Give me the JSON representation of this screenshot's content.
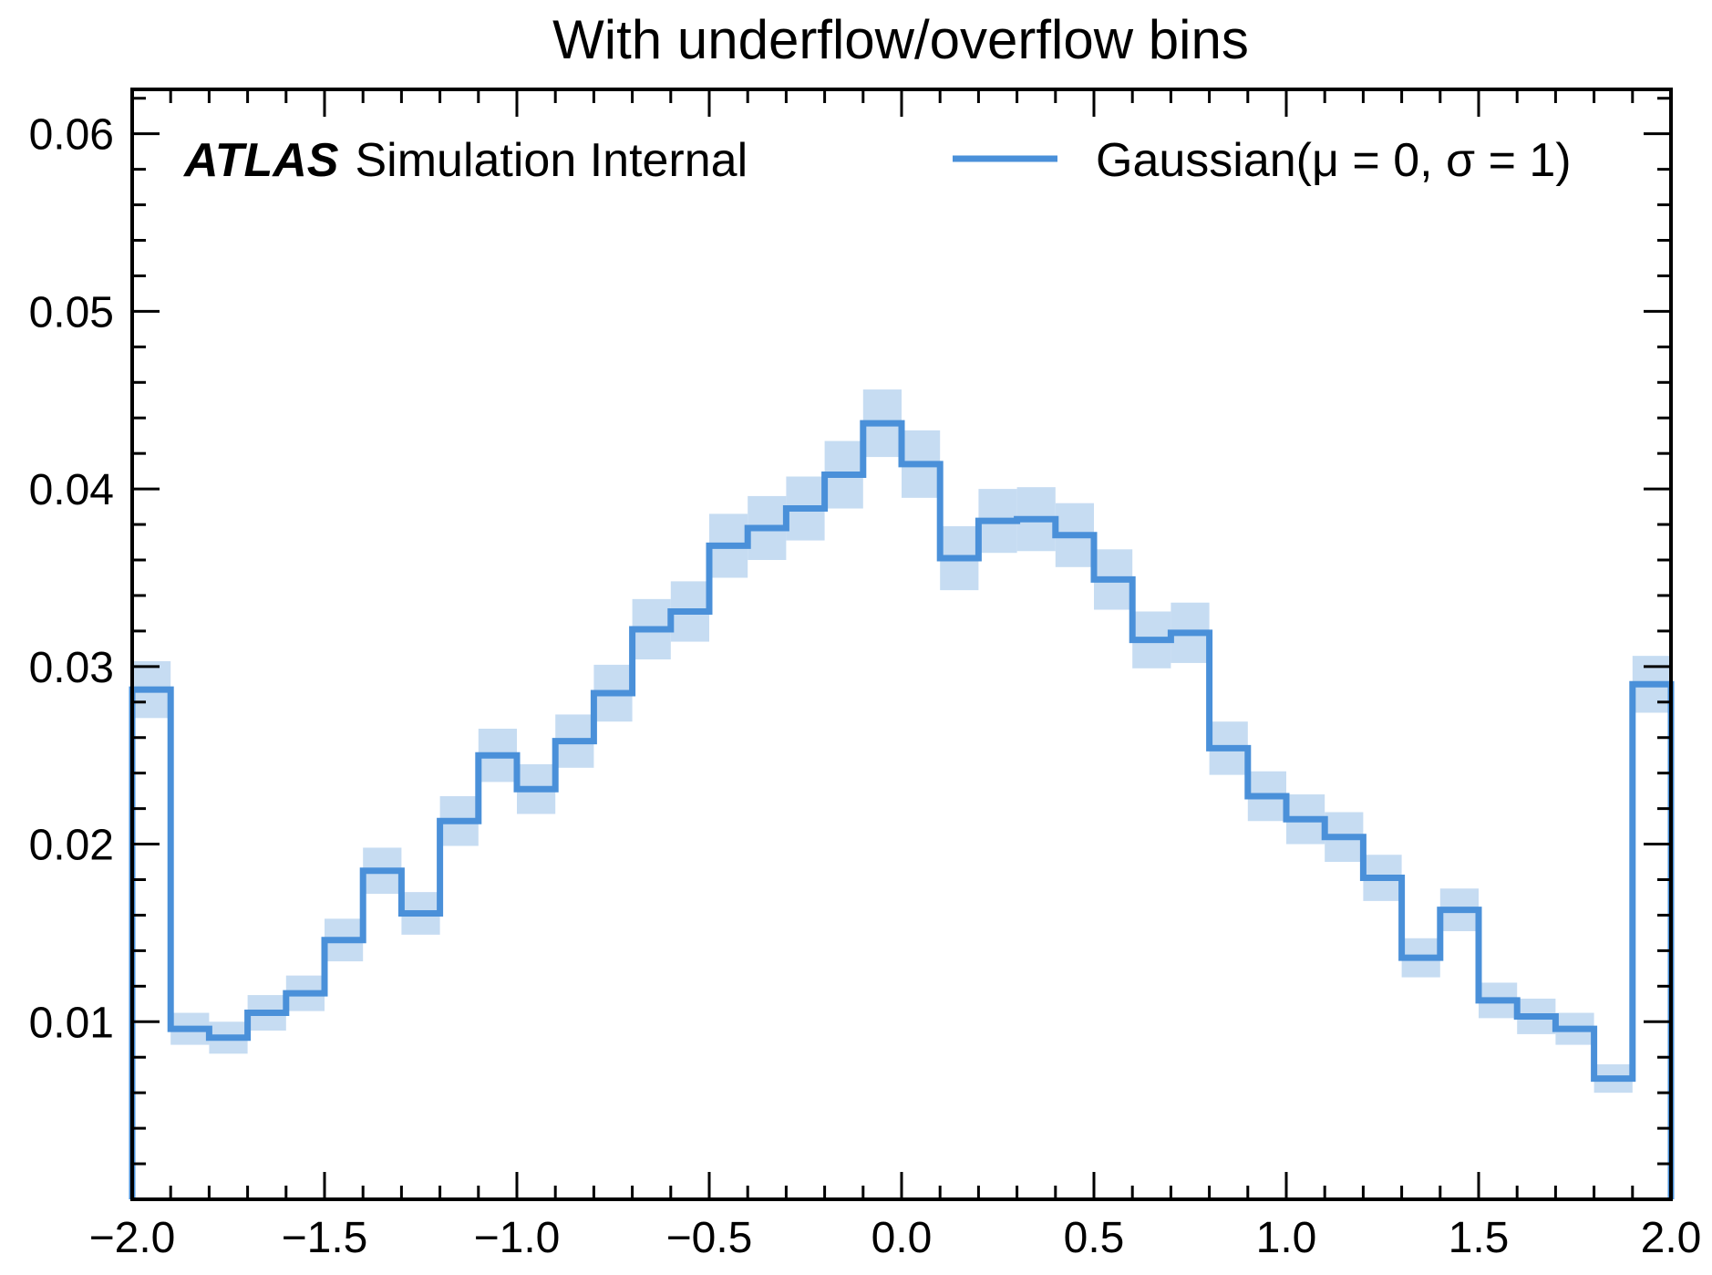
{
  "chart_data": {
    "type": "histogram",
    "title": "With underflow/overflow bins",
    "xlabel": "",
    "ylabel": "",
    "xlim": [
      -2.0,
      2.0
    ],
    "ylim": [
      0.0,
      0.0625
    ],
    "x_ticks": [
      -2.0,
      -1.5,
      -1.0,
      -0.5,
      0.0,
      0.5,
      1.0,
      1.5,
      2.0
    ],
    "x_tick_labels": [
      "−2.0",
      "−1.5",
      "−1.0",
      "−0.5",
      "0.0",
      "0.5",
      "1.0",
      "1.5",
      "2.0"
    ],
    "y_ticks": [
      0.01,
      0.02,
      0.03,
      0.04,
      0.05,
      0.06
    ],
    "y_tick_labels": [
      "0.01",
      "0.02",
      "0.03",
      "0.04",
      "0.05",
      "0.06"
    ],
    "label": {
      "experiment": "ATLAS",
      "text": "Simulation Internal"
    },
    "legend": {
      "position": "top-right"
    },
    "series": [
      {
        "name": "Gaussian(μ = 0, σ = 1)",
        "color": "#4a90d9",
        "band_color": "#c6dcf2",
        "bin_edges": [
          -2.0,
          -1.9,
          -1.8,
          -1.7,
          -1.6,
          -1.5,
          -1.4,
          -1.3,
          -1.2,
          -1.1,
          -1.0,
          -0.9,
          -0.8,
          -0.7,
          -0.6,
          -0.5,
          -0.4,
          -0.3,
          -0.2,
          -0.1,
          0.0,
          0.1,
          0.2,
          0.3,
          0.4,
          0.5,
          0.6,
          0.7,
          0.8,
          0.9,
          1.0,
          1.1,
          1.2,
          1.3,
          1.4,
          1.5,
          1.6,
          1.7,
          1.8,
          1.9,
          2.0
        ],
        "values": [
          0.0287,
          0.0096,
          0.0091,
          0.0105,
          0.0116,
          0.0146,
          0.0185,
          0.0161,
          0.0213,
          0.025,
          0.0231,
          0.0258,
          0.0285,
          0.0321,
          0.0331,
          0.0368,
          0.0378,
          0.0389,
          0.0408,
          0.0437,
          0.0414,
          0.0361,
          0.0382,
          0.0383,
          0.0374,
          0.0349,
          0.0315,
          0.0319,
          0.0254,
          0.0227,
          0.0214,
          0.0204,
          0.0181,
          0.0136,
          0.0163,
          0.0112,
          0.0103,
          0.0096,
          0.0068,
          0.029
        ],
        "errors": [
          0.0016,
          0.0009,
          0.0009,
          0.001,
          0.001,
          0.0012,
          0.0013,
          0.0012,
          0.0014,
          0.0015,
          0.0014,
          0.0015,
          0.0016,
          0.0017,
          0.0017,
          0.0018,
          0.0018,
          0.0018,
          0.0019,
          0.0019,
          0.0019,
          0.0018,
          0.0018,
          0.0018,
          0.0018,
          0.0017,
          0.0016,
          0.0017,
          0.0015,
          0.0014,
          0.0014,
          0.0014,
          0.0013,
          0.0011,
          0.0012,
          0.001,
          0.001,
          0.0009,
          0.0008,
          0.0016
        ]
      }
    ]
  }
}
